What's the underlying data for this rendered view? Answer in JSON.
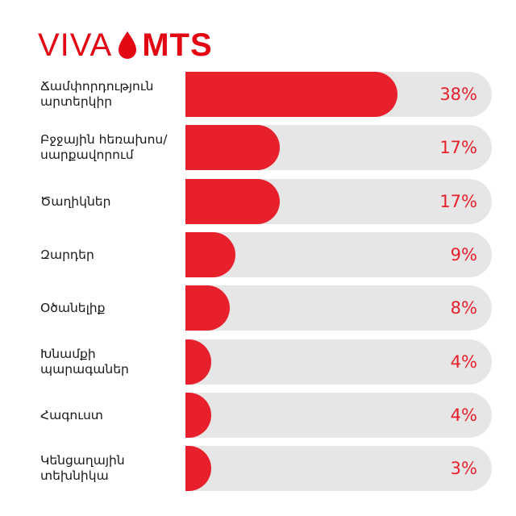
{
  "logo": {
    "left": "VIVA",
    "right": "MTS",
    "brand_color": "#e30613"
  },
  "colors": {
    "bar": "#e8202b",
    "track": "#e6e6e7",
    "label": "#1a1a1a",
    "value": "#e8202b"
  },
  "chart_data": {
    "type": "bar",
    "orientation": "horizontal",
    "title": "",
    "xlabel": "",
    "ylabel": "",
    "xlim": [
      0,
      100
    ],
    "grid": false,
    "categories": [
      "Ճամփորդություն\nարտերկիր",
      "Բջջային հեռախոս/\nսարքավորում",
      "Ծաղիկներ",
      "Զարդեր",
      "Օծանելիք",
      "Խնամքի\nպարագաներ",
      "Հագուստ",
      "Կենցաղային\nտեխնիկա"
    ],
    "values": [
      38,
      17,
      17,
      9,
      8,
      4,
      4,
      3
    ],
    "value_labels": [
      "38%",
      "17%",
      "17%",
      "9%",
      "8%",
      "4%",
      "4%",
      "3%"
    ]
  }
}
